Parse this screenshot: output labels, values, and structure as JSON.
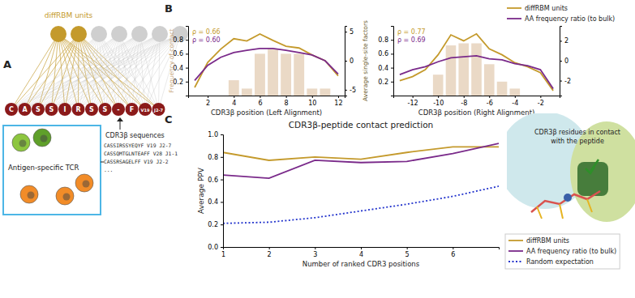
{
  "panels": [
    "A",
    "B",
    "C"
  ],
  "diagram": {
    "title": "diffRBM units",
    "hidden_units": 7,
    "highlighted_units": 2,
    "visible_units": [
      "C",
      "A",
      "S",
      "S",
      "I",
      "R",
      "S",
      "S",
      "-",
      "F",
      "V19",
      "J2-7"
    ],
    "box_label": "Antigen-specific TCR",
    "sequences_label": "CDR3β sequences",
    "sequences": [
      "CASSIRSSYEQYF V19 J2-7",
      "CASSQMTGLNTEAFF V28 J1-1",
      "CASSRSAGELFF V19 J2-2",
      "..."
    ]
  },
  "image_label": [
    "CDR3β residues in contact",
    "with the peptide"
  ],
  "chart_data": [
    {
      "type": "bar",
      "xlabel": "CDR3β position (Left Alignment)",
      "ylabel": "Frequency of contact",
      "y2label": "Average single-site factors",
      "x": [
        1,
        2,
        3,
        4,
        5,
        6,
        7,
        8,
        9,
        10,
        11,
        12
      ],
      "xlim": [
        0.5,
        12.5
      ],
      "xticks": [
        2,
        4,
        6,
        8,
        10,
        12
      ],
      "ylim": [
        0,
        1
      ],
      "yticks": [
        0.2,
        0.4,
        0.6,
        0.8
      ],
      "y2lim": [
        -6,
        6
      ],
      "y2ticks": [
        -5,
        0,
        5
      ],
      "grid": false,
      "series": [
        {
          "type": "bar",
          "color": "#ead9c6",
          "values": [
            0,
            0,
            0,
            0.22,
            0.1,
            0.6,
            0.67,
            0.6,
            0.6,
            0.1,
            0.1,
            0
          ]
        },
        {
          "type": "line",
          "axis": "y2",
          "color": "#c49a2c",
          "values": [
            -4.6,
            -0.3,
            2.0,
            3.8,
            3.4,
            4.6,
            3.5,
            2.5,
            2.2,
            1.0,
            0.0,
            -2.6
          ]
        },
        {
          "type": "line",
          "axis": "y2",
          "color": "#7a2a8a",
          "values": [
            -3.4,
            -0.8,
            0.6,
            1.4,
            1.8,
            2.1,
            2.1,
            1.8,
            1.4,
            1.0,
            0.0,
            -2.3
          ]
        }
      ],
      "annotations": [
        {
          "text": "ρ = 0.66",
          "color": "#c49a2c"
        },
        {
          "text": "ρ = 0.60",
          "color": "#7a2a8a"
        }
      ]
    },
    {
      "type": "bar",
      "xlabel": "CDR3β position (Right Alignment)",
      "x": [
        -13,
        -12,
        -11,
        -10,
        -9,
        -8,
        -7,
        -6,
        -5,
        -4,
        -3,
        -2,
        -1
      ],
      "xlim": [
        -13.5,
        -0.5
      ],
      "xticks": [
        -12,
        -10,
        -8,
        -6,
        -4,
        -2
      ],
      "ylim": [
        0,
        1
      ],
      "yticks": [
        0.2,
        0.4,
        0.6,
        0.8
      ],
      "y2lim": [
        -3.5,
        3.5
      ],
      "y2ticks": [
        -2,
        0,
        2
      ],
      "grid": false,
      "legend": "upper right",
      "series": [
        {
          "type": "bar",
          "color": "#ead9c6",
          "values": [
            0,
            0,
            0,
            0.3,
            0.72,
            0.75,
            0.75,
            0.45,
            0.2,
            0.1,
            0,
            0,
            0
          ]
        },
        {
          "type": "line",
          "axis": "y2",
          "name": "diffRBM units",
          "color": "#c49a2c",
          "values": [
            -2.0,
            -1.6,
            -0.9,
            0.6,
            2.6,
            2.0,
            2.7,
            1.2,
            0.6,
            -0.2,
            -0.6,
            -1.2,
            -3.0
          ]
        },
        {
          "type": "line",
          "axis": "y2",
          "name": "AA frequency ratio (to bulk)",
          "color": "#7a2a8a",
          "values": [
            -1.4,
            -0.9,
            -0.6,
            -0.1,
            0.3,
            0.4,
            0.5,
            0.2,
            0.1,
            -0.3,
            -0.5,
            -0.9,
            -2.8
          ]
        }
      ],
      "annotations": [
        {
          "text": "ρ = 0.77",
          "color": "#c49a2c"
        },
        {
          "text": "ρ = 0.69",
          "color": "#7a2a8a"
        }
      ]
    },
    {
      "type": "line",
      "title": "CDR3β-peptide contact prediction",
      "xlabel": "Number of ranked CDR3 positions",
      "ylabel": "Average PPV",
      "x": [
        1,
        2,
        3,
        4,
        5,
        6,
        7
      ],
      "xlim": [
        1,
        7
      ],
      "xticks": [
        1,
        2,
        3,
        4,
        5,
        6
      ],
      "ylim": [
        0,
        1
      ],
      "yticks": [
        {
          "value": 0,
          "label": "0.0"
        },
        {
          "value": 0.2,
          "label": "0.2"
        },
        {
          "value": 0.4,
          "label": "0.4"
        },
        {
          "value": 0.6,
          "label": "0.6"
        },
        {
          "value": 0.8,
          "label": "0.8"
        },
        {
          "value": 1,
          "label": "1.0"
        }
      ],
      "grid": false,
      "legend": "right",
      "series": [
        {
          "name": "diffRBM units",
          "color": "#c49a2c",
          "values": [
            0.84,
            0.77,
            0.8,
            0.78,
            0.84,
            0.89,
            0.89
          ]
        },
        {
          "name": "AA frequency ratio (to bulk)",
          "color": "#7a2a8a",
          "values": [
            0.64,
            0.61,
            0.77,
            0.75,
            0.76,
            0.83,
            0.92
          ]
        },
        {
          "name": "Random expectation",
          "color": "#2233cc",
          "line_style": "dotted",
          "values": [
            0.21,
            0.22,
            0.26,
            0.32,
            0.38,
            0.45,
            0.54
          ]
        }
      ]
    }
  ]
}
